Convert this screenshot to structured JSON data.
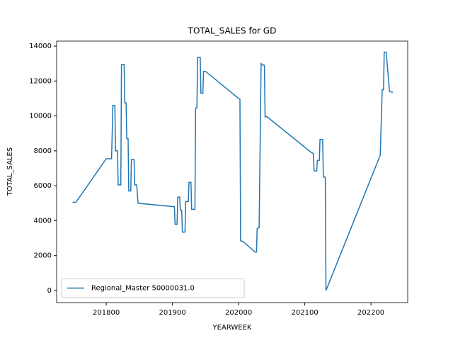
{
  "chart_data": {
    "type": "line",
    "title": "TOTAL_SALES for GD",
    "x_label": "YEARWEEK",
    "y_label": "TOTAL_SALES",
    "x": [
      201749,
      201754,
      201800,
      201808,
      201810,
      201813,
      201814,
      201817,
      201818,
      201822,
      201823,
      201827,
      201828,
      201830,
      201831,
      201833,
      201834,
      201837,
      201838,
      201842,
      201843,
      201846,
      201848,
      201903,
      201904,
      201907,
      201908,
      201911,
      201912,
      201914,
      201915,
      201919,
      201920,
      201924,
      201925,
      201928,
      201929,
      201934,
      201935,
      201937,
      201938,
      201942,
      201943,
      201946,
      201947,
      201950,
      202000,
      202002,
      202003,
      202007,
      202025,
      202027,
      202028,
      202031,
      202034,
      202037,
      202039,
      202040,
      202043,
      202110,
      202113,
      202114,
      202118,
      202119,
      202122,
      202123,
      202127,
      202128,
      202131,
      202132,
      202214,
      202217,
      202219,
      202220,
      202223,
      202228,
      202233
    ],
    "series": [
      {
        "name": "Regional_Master 50000031.0",
        "color": "#1f77b4",
        "values": [
          5050,
          5050,
          7550,
          7550,
          10600,
          10600,
          8000,
          8000,
          6050,
          6050,
          12950,
          12950,
          10750,
          10750,
          8700,
          8700,
          5700,
          5700,
          7500,
          7500,
          6050,
          6050,
          5000,
          4800,
          3800,
          3800,
          5350,
          5350,
          4600,
          4600,
          3350,
          3350,
          5100,
          5100,
          6200,
          6200,
          4650,
          4650,
          10450,
          10450,
          13350,
          13350,
          11300,
          11300,
          12550,
          12550,
          11000,
          10950,
          2850,
          2800,
          2200,
          2200,
          3550,
          3600,
          13000,
          12900,
          12900,
          9950,
          9950,
          7900,
          7850,
          6850,
          6850,
          7450,
          7450,
          8650,
          8650,
          6500,
          6500,
          0,
          7750,
          11500,
          11500,
          13650,
          13650,
          11400,
          11350
        ]
      }
    ],
    "xlim": [
      201725,
      202255.5
    ],
    "xticks": [
      201800,
      201900,
      202000,
      202100,
      202200
    ],
    "ylim": [
      -690,
      14284
    ],
    "yticks": [
      0,
      2000,
      4000,
      6000,
      8000,
      10000,
      12000,
      14000
    ],
    "grid": false,
    "legend": "lower left"
  }
}
